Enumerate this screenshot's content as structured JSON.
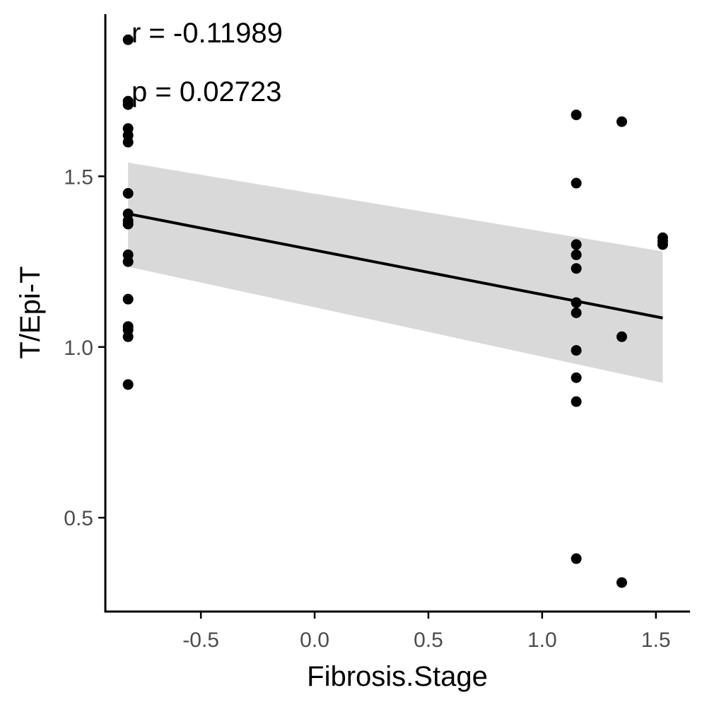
{
  "chart_data": {
    "type": "scatter",
    "title": "",
    "xlabel": "Fibrosis.Stage",
    "ylabel": "T/Epi-T",
    "xlim": [
      -0.92,
      1.65
    ],
    "ylim": [
      0.225,
      1.975
    ],
    "x_ticks": [
      -0.5,
      0.0,
      0.5,
      1.0,
      1.5
    ],
    "x_tick_labels": [
      "-0.5",
      "0.0",
      "0.5",
      "1.0",
      "1.5"
    ],
    "y_ticks": [
      0.5,
      1.0,
      1.5
    ],
    "y_tick_labels": [
      "0.5",
      "1.0",
      "1.5"
    ],
    "grid": false,
    "legend": "none",
    "annotations": {
      "r_text": "r = -0.11989",
      "p_text": "p = 0.02723"
    },
    "points": [
      {
        "x": -0.82,
        "y": 1.9
      },
      {
        "x": -0.82,
        "y": 1.72
      },
      {
        "x": -0.82,
        "y": 1.71
      },
      {
        "x": -0.82,
        "y": 1.64
      },
      {
        "x": -0.82,
        "y": 1.62
      },
      {
        "x": -0.82,
        "y": 1.6
      },
      {
        "x": -0.82,
        "y": 1.45
      },
      {
        "x": -0.82,
        "y": 1.39
      },
      {
        "x": -0.82,
        "y": 1.37
      },
      {
        "x": -0.82,
        "y": 1.36
      },
      {
        "x": -0.82,
        "y": 1.27
      },
      {
        "x": -0.82,
        "y": 1.25
      },
      {
        "x": -0.82,
        "y": 1.14
      },
      {
        "x": -0.82,
        "y": 1.06
      },
      {
        "x": -0.82,
        "y": 1.05
      },
      {
        "x": -0.82,
        "y": 1.03
      },
      {
        "x": -0.82,
        "y": 0.89
      },
      {
        "x": 1.15,
        "y": 1.68
      },
      {
        "x": 1.15,
        "y": 1.48
      },
      {
        "x": 1.15,
        "y": 1.3
      },
      {
        "x": 1.15,
        "y": 1.27
      },
      {
        "x": 1.15,
        "y": 1.23
      },
      {
        "x": 1.15,
        "y": 1.13
      },
      {
        "x": 1.15,
        "y": 1.1
      },
      {
        "x": 1.15,
        "y": 0.99
      },
      {
        "x": 1.15,
        "y": 0.91
      },
      {
        "x": 1.15,
        "y": 0.84
      },
      {
        "x": 1.15,
        "y": 0.38
      },
      {
        "x": 1.35,
        "y": 1.66
      },
      {
        "x": 1.35,
        "y": 1.03
      },
      {
        "x": 1.35,
        "y": 0.31
      },
      {
        "x": 1.53,
        "y": 1.32
      },
      {
        "x": 1.53,
        "y": 1.31
      },
      {
        "x": 1.53,
        "y": 1.3
      }
    ],
    "regression": {
      "x": [
        -0.82,
        1.53
      ],
      "y": [
        1.39,
        1.085
      ],
      "ci_lower": [
        1.235,
        0.895
      ],
      "ci_upper": [
        1.54,
        1.28
      ]
    },
    "colors": {
      "points": "#000000",
      "line": "#000000",
      "band": "#d9d9d9",
      "axis": "#000000",
      "tick_text": "#4d4d4d"
    }
  }
}
